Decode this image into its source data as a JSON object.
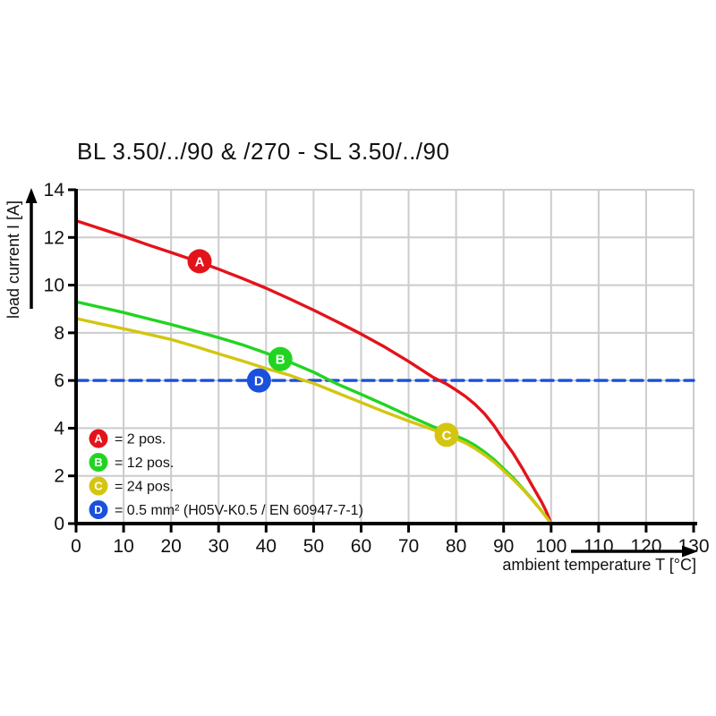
{
  "title": "BL 3.50/../90 & /270 - SL 3.50/../90",
  "x_axis": {
    "label": "ambient temperature T [°C]",
    "ticks": [
      0,
      10,
      20,
      30,
      40,
      50,
      60,
      70,
      80,
      90,
      100,
      110,
      120,
      130
    ],
    "range": [
      0,
      130
    ]
  },
  "y_axis": {
    "label": "load current I [A]",
    "ticks": [
      0,
      2,
      4,
      6,
      8,
      10,
      12,
      14
    ],
    "range": [
      0,
      14
    ]
  },
  "colors": {
    "red": "#e3131b",
    "green": "#22d422",
    "yellow": "#d4c511",
    "blue": "#1a50dc",
    "grid": "#cccccc",
    "axis": "#000000",
    "marker_letter": "#ffffff"
  },
  "chart_data": {
    "type": "line",
    "title": "BL 3.50/../90 & /270 - SL 3.50/../90",
    "xlabel": "ambient temperature T [°C]",
    "ylabel": "load current I [A]",
    "xlim": [
      0,
      130
    ],
    "ylim": [
      0,
      14
    ],
    "grid": true,
    "legend_position": "inside-bottom-left",
    "series": [
      {
        "id": "A",
        "name": "2 pos.",
        "color": "#e3131b",
        "style": "solid",
        "marker": {
          "letter": "A",
          "x": 26,
          "y": 11.0
        },
        "points": [
          [
            0,
            12.7
          ],
          [
            5,
            12.38
          ],
          [
            10,
            12.05
          ],
          [
            15,
            11.7
          ],
          [
            20,
            11.37
          ],
          [
            25,
            11.03
          ],
          [
            30,
            10.67
          ],
          [
            35,
            10.28
          ],
          [
            40,
            9.87
          ],
          [
            45,
            9.42
          ],
          [
            50,
            8.95
          ],
          [
            55,
            8.46
          ],
          [
            60,
            7.95
          ],
          [
            65,
            7.4
          ],
          [
            70,
            6.8
          ],
          [
            75,
            6.15
          ],
          [
            78,
            5.85
          ],
          [
            80,
            5.6
          ],
          [
            82,
            5.33
          ],
          [
            84,
            5.0
          ],
          [
            86,
            4.6
          ],
          [
            88,
            4.1
          ],
          [
            90,
            3.5
          ],
          [
            92,
            2.95
          ],
          [
            94,
            2.3
          ],
          [
            96,
            1.6
          ],
          [
            98,
            0.9
          ],
          [
            99,
            0.5
          ],
          [
            100,
            0
          ]
        ]
      },
      {
        "id": "B",
        "name": "12 pos.",
        "color": "#22d422",
        "style": "solid",
        "marker": {
          "letter": "B",
          "x": 43,
          "y": 6.9
        },
        "points": [
          [
            0,
            9.3
          ],
          [
            5,
            9.08
          ],
          [
            10,
            8.85
          ],
          [
            15,
            8.6
          ],
          [
            20,
            8.35
          ],
          [
            25,
            8.08
          ],
          [
            30,
            7.8
          ],
          [
            35,
            7.5
          ],
          [
            40,
            7.15
          ],
          [
            43,
            6.92
          ],
          [
            45,
            6.77
          ],
          [
            50,
            6.35
          ],
          [
            55,
            5.85
          ],
          [
            60,
            5.42
          ],
          [
            65,
            4.98
          ],
          [
            70,
            4.52
          ],
          [
            75,
            4.08
          ],
          [
            78,
            3.85
          ],
          [
            80,
            3.68
          ],
          [
            82,
            3.5
          ],
          [
            84,
            3.28
          ],
          [
            86,
            3.0
          ],
          [
            88,
            2.68
          ],
          [
            90,
            2.3
          ],
          [
            92,
            1.92
          ],
          [
            94,
            1.48
          ],
          [
            96,
            1.02
          ],
          [
            98,
            0.53
          ],
          [
            100,
            0
          ]
        ]
      },
      {
        "id": "C",
        "name": "24 pos.",
        "color": "#d4c511",
        "style": "solid",
        "marker": {
          "letter": "C",
          "x": 78,
          "y": 3.72
        },
        "points": [
          [
            0,
            8.6
          ],
          [
            5,
            8.38
          ],
          [
            10,
            8.17
          ],
          [
            15,
            7.95
          ],
          [
            20,
            7.72
          ],
          [
            25,
            7.43
          ],
          [
            30,
            7.12
          ],
          [
            35,
            6.82
          ],
          [
            40,
            6.5
          ],
          [
            45,
            6.22
          ],
          [
            48,
            6.0
          ],
          [
            50,
            5.88
          ],
          [
            55,
            5.48
          ],
          [
            60,
            5.08
          ],
          [
            65,
            4.68
          ],
          [
            70,
            4.3
          ],
          [
            75,
            3.95
          ],
          [
            78,
            3.72
          ],
          [
            80,
            3.55
          ],
          [
            82,
            3.38
          ],
          [
            84,
            3.15
          ],
          [
            86,
            2.88
          ],
          [
            88,
            2.58
          ],
          [
            90,
            2.22
          ],
          [
            92,
            1.85
          ],
          [
            94,
            1.45
          ],
          [
            96,
            1.0
          ],
          [
            98,
            0.52
          ],
          [
            100,
            0
          ]
        ]
      },
      {
        "id": "D",
        "name": "0.5 mm² (H05V-K0.5 / EN 60947-7-1)",
        "color": "#1a50dc",
        "style": "dashed",
        "marker": {
          "letter": "D",
          "x": 38.5,
          "y": 6.0
        },
        "points": [
          [
            0,
            6
          ],
          [
            130,
            6
          ]
        ]
      }
    ],
    "legend": [
      {
        "id": "A",
        "color": "#e3131b",
        "label": "= 2 pos."
      },
      {
        "id": "B",
        "color": "#22d422",
        "label": "= 12 pos."
      },
      {
        "id": "C",
        "color": "#d4c511",
        "label": "= 24 pos."
      },
      {
        "id": "D",
        "color": "#1a50dc",
        "label": "= 0.5 mm² (H05V-K0.5 / EN 60947-7-1)"
      }
    ]
  }
}
